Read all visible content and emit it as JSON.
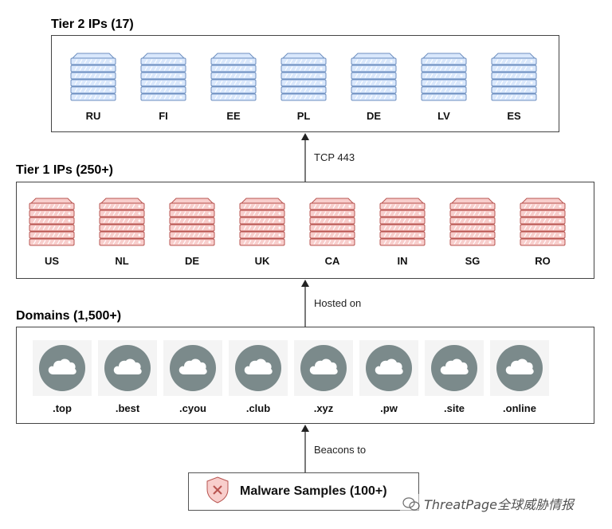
{
  "tier2": {
    "title": "Tier 2 IPs (17)",
    "servers": [
      "RU",
      "FI",
      "EE",
      "PL",
      "DE",
      "LV",
      "ES"
    ]
  },
  "tier1": {
    "title": "Tier 1 IPs (250+)",
    "servers": [
      "US",
      "NL",
      "DE",
      "UK",
      "CA",
      "IN",
      "SG",
      "RO"
    ]
  },
  "domains": {
    "title": "Domains (1,500+)",
    "tlds": [
      ".top",
      ".best",
      ".cyou",
      ".club",
      ".xyz",
      ".pw",
      ".site",
      ".online"
    ]
  },
  "connections": {
    "tier1_to_tier2": "TCP 443",
    "domains_to_tier1": "Hosted on",
    "malware_to_domains": "Beacons to"
  },
  "malware": {
    "label": "Malware Samples (100+)"
  },
  "watermark": "ThreatPage全球威胁情报",
  "colors": {
    "tier2_server": "#dae8fc",
    "tier2_stroke": "#6c8ebf",
    "tier1_server": "#f8cecc",
    "tier1_stroke": "#b85450",
    "cloud_circle": "#7b8a8b",
    "shield": "#f8cecc"
  },
  "icons": {
    "server": "server-rack-icon",
    "domain": "cloud-icon",
    "malware": "shield-x-icon"
  }
}
